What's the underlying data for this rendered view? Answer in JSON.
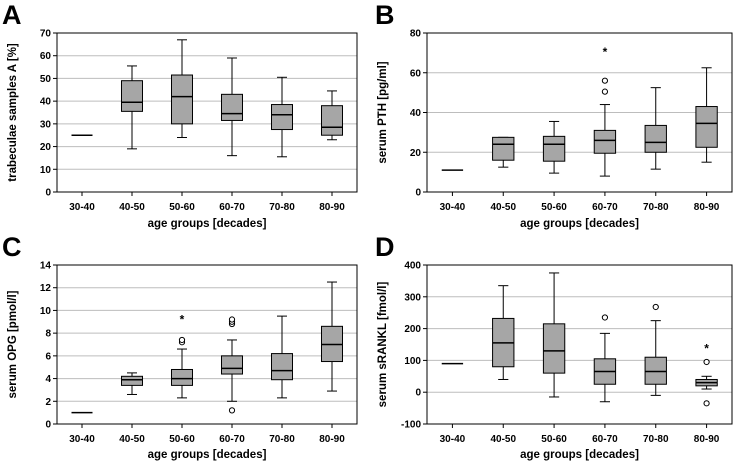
{
  "figure": {
    "panels": [
      "A",
      "B",
      "C",
      "D"
    ]
  },
  "colors": {
    "box_fill": "#a6a6a6",
    "frame": "#000000",
    "grid": "#bdbdbd",
    "background": "#ffffff"
  },
  "chart_data": [
    {
      "panel": "A",
      "type": "box",
      "title": "",
      "xlabel": "age groups [decades]",
      "ylabel": "trabeculae samples A [%]",
      "ylim": [
        0,
        70
      ],
      "yticks": [
        0,
        10,
        20,
        30,
        40,
        50,
        60,
        70
      ],
      "categories": [
        "30-40",
        "40-50",
        "50-60",
        "60-70",
        "70-80",
        "80-90"
      ],
      "boxes": [
        {
          "category": "30-40",
          "min": 25,
          "q1": 25,
          "median": 25,
          "q3": 25,
          "max": 25,
          "outliers": [],
          "extremes": []
        },
        {
          "category": "40-50",
          "min": 19,
          "q1": 35.5,
          "median": 39.5,
          "q3": 49,
          "max": 55.5,
          "outliers": [],
          "extremes": []
        },
        {
          "category": "50-60",
          "min": 24,
          "q1": 30,
          "median": 42,
          "q3": 51.5,
          "max": 67,
          "outliers": [],
          "extremes": []
        },
        {
          "category": "60-70",
          "min": 16,
          "q1": 31.5,
          "median": 34.5,
          "q3": 43,
          "max": 59,
          "outliers": [],
          "extremes": []
        },
        {
          "category": "70-80",
          "min": 15.5,
          "q1": 27.5,
          "median": 34,
          "q3": 38.5,
          "max": 50.5,
          "outliers": [],
          "extremes": []
        },
        {
          "category": "80-90",
          "min": 23,
          "q1": 25,
          "median": 28.5,
          "q3": 38,
          "max": 44.5,
          "outliers": [],
          "extremes": []
        }
      ]
    },
    {
      "panel": "B",
      "type": "box",
      "title": "",
      "xlabel": "age groups [decades]",
      "ylabel": "serum PTH [pg/ml]",
      "ylim": [
        0,
        80
      ],
      "yticks": [
        0,
        20,
        40,
        60,
        80
      ],
      "categories": [
        "30-40",
        "40-50",
        "50-60",
        "60-70",
        "70-80",
        "80-90"
      ],
      "boxes": [
        {
          "category": "30-40",
          "min": 11,
          "q1": 11,
          "median": 11,
          "q3": 11,
          "max": 11,
          "outliers": [],
          "extremes": []
        },
        {
          "category": "40-50",
          "min": 12.5,
          "q1": 16,
          "median": 24,
          "q3": 27.5,
          "max": 27.5,
          "outliers": [],
          "extremes": []
        },
        {
          "category": "50-60",
          "min": 9.5,
          "q1": 15.5,
          "median": 24,
          "q3": 28,
          "max": 35.5,
          "outliers": [],
          "extremes": []
        },
        {
          "category": "60-70",
          "min": 8,
          "q1": 19.5,
          "median": 26,
          "q3": 31,
          "max": 44,
          "outliers": [
            50.5,
            56
          ],
          "extremes": [
            71
          ]
        },
        {
          "category": "70-80",
          "min": 11.5,
          "q1": 20,
          "median": 25,
          "q3": 33.5,
          "max": 52.5,
          "outliers": [],
          "extremes": []
        },
        {
          "category": "80-90",
          "min": 15,
          "q1": 22.5,
          "median": 34.5,
          "q3": 43,
          "max": 62.5,
          "outliers": [],
          "extremes": []
        }
      ]
    },
    {
      "panel": "C",
      "type": "box",
      "title": "",
      "xlabel": "age groups [decades]",
      "ylabel": "serum OPG [pmol/l]",
      "ylim": [
        0,
        14
      ],
      "yticks": [
        0,
        2,
        4,
        6,
        8,
        10,
        12,
        14
      ],
      "categories": [
        "30-40",
        "40-50",
        "50-60",
        "60-70",
        "70-80",
        "80-90"
      ],
      "boxes": [
        {
          "category": "30-40",
          "min": 1.0,
          "q1": 1.0,
          "median": 1.0,
          "q3": 1.0,
          "max": 1.0,
          "outliers": [],
          "extremes": []
        },
        {
          "category": "40-50",
          "min": 2.6,
          "q1": 3.4,
          "median": 3.9,
          "q3": 4.2,
          "max": 4.5,
          "outliers": [],
          "extremes": []
        },
        {
          "category": "50-60",
          "min": 2.3,
          "q1": 3.4,
          "median": 4.0,
          "q3": 4.8,
          "max": 6.6,
          "outliers": [
            7.2,
            7.4
          ],
          "extremes": [
            9.3
          ]
        },
        {
          "category": "60-70",
          "min": 2.0,
          "q1": 4.4,
          "median": 4.9,
          "q3": 6.0,
          "max": 7.4,
          "outliers": [
            8.8,
            9.0,
            9.2,
            1.2
          ],
          "extremes": []
        },
        {
          "category": "70-80",
          "min": 2.3,
          "q1": 3.9,
          "median": 4.7,
          "q3": 6.2,
          "max": 9.5,
          "outliers": [],
          "extremes": []
        },
        {
          "category": "80-90",
          "min": 2.9,
          "q1": 5.5,
          "median": 7.0,
          "q3": 8.6,
          "max": 12.5,
          "outliers": [],
          "extremes": []
        }
      ]
    },
    {
      "panel": "D",
      "type": "box",
      "title": "",
      "xlabel": "age groups [decades]",
      "ylabel": "serum sRANKL [fmol/l]",
      "ylim": [
        -100,
        400
      ],
      "yticks": [
        -100,
        0,
        100,
        200,
        300,
        400
      ],
      "categories": [
        "30-40",
        "40-50",
        "50-60",
        "60-70",
        "70-80",
        "80-90"
      ],
      "boxes": [
        {
          "category": "30-40",
          "min": 90,
          "q1": 90,
          "median": 90,
          "q3": 90,
          "max": 90,
          "outliers": [],
          "extremes": []
        },
        {
          "category": "40-50",
          "min": 40,
          "q1": 80,
          "median": 155,
          "q3": 232,
          "max": 335,
          "outliers": [],
          "extremes": []
        },
        {
          "category": "50-60",
          "min": -15,
          "q1": 60,
          "median": 130,
          "q3": 215,
          "max": 375,
          "outliers": [],
          "extremes": []
        },
        {
          "category": "60-70",
          "min": -30,
          "q1": 25,
          "median": 65,
          "q3": 105,
          "max": 185,
          "outliers": [
            235
          ],
          "extremes": []
        },
        {
          "category": "70-80",
          "min": -10,
          "q1": 25,
          "median": 65,
          "q3": 110,
          "max": 225,
          "outliers": [
            268
          ],
          "extremes": []
        },
        {
          "category": "80-90",
          "min": 10,
          "q1": 20,
          "median": 30,
          "q3": 40,
          "max": 50,
          "outliers": [
            95,
            -35
          ],
          "extremes": [
            140
          ]
        }
      ]
    }
  ]
}
